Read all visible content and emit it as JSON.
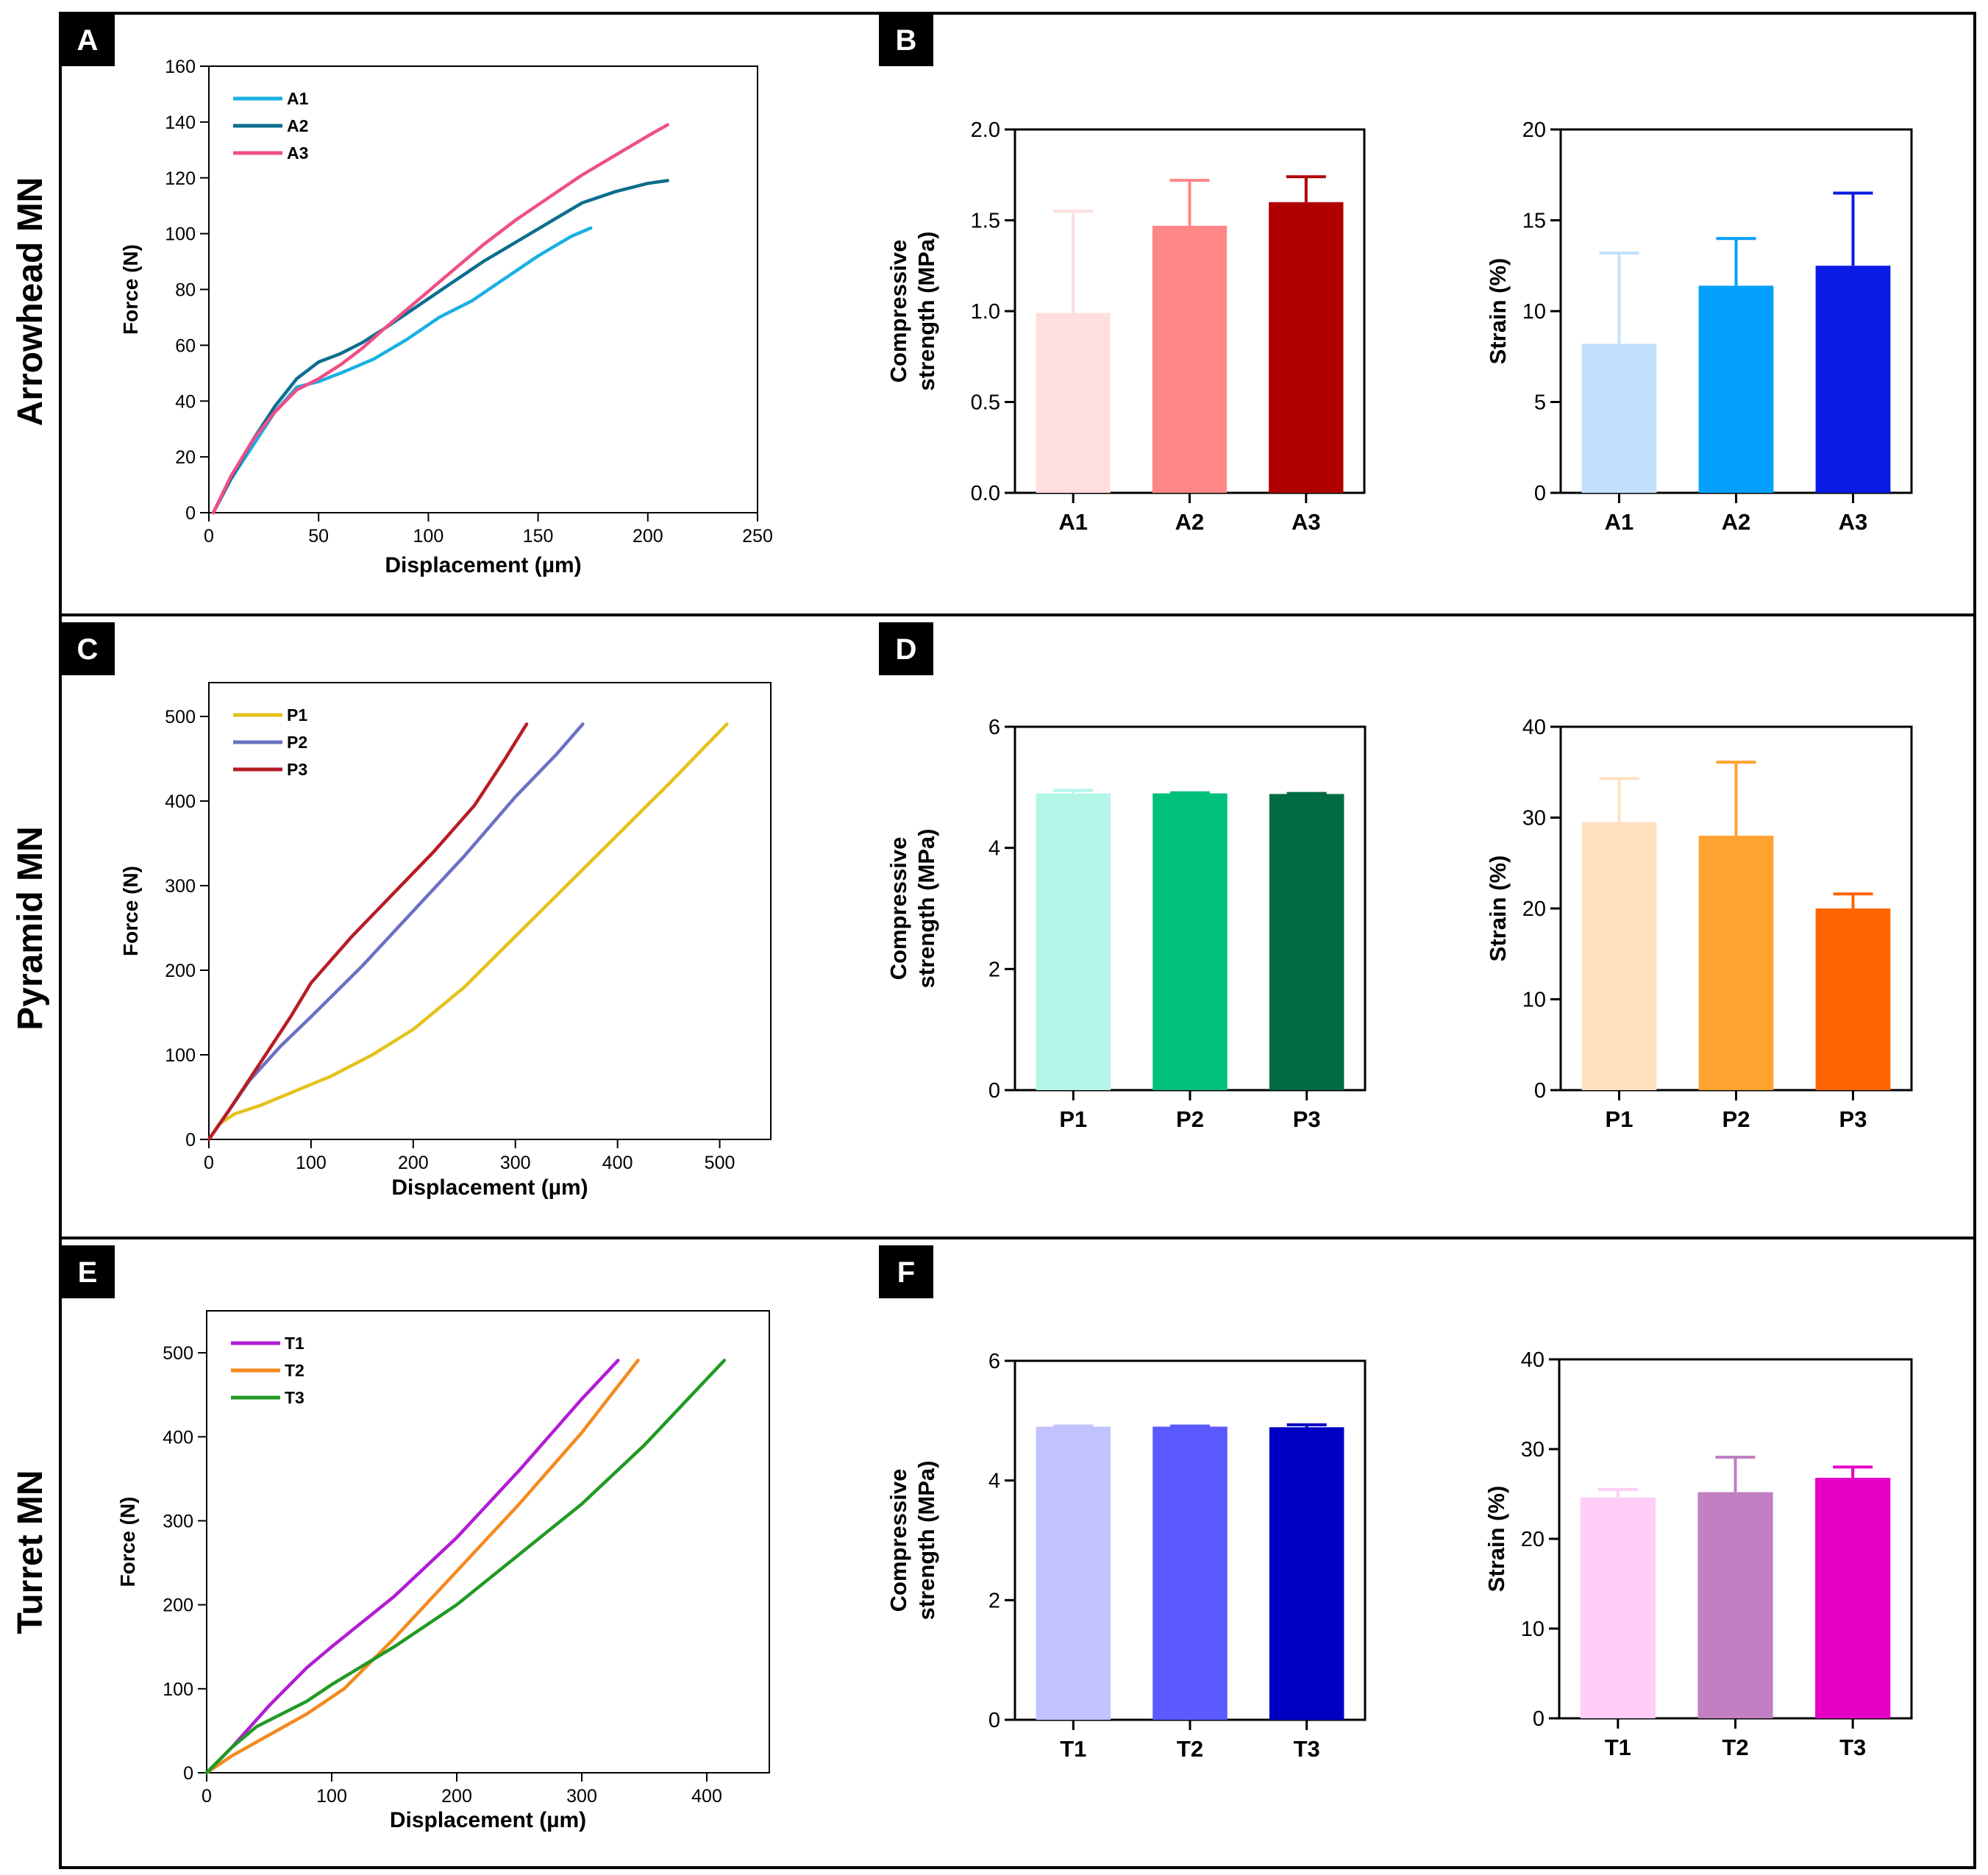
{
  "rows": [
    {
      "title": "Arrowhead MN"
    },
    {
      "title": "Pyramid MN"
    },
    {
      "title": "Turret MN"
    }
  ],
  "panel_letters": [
    "A",
    "B",
    "C",
    "D",
    "E",
    "F"
  ],
  "colors": {
    "A1": "#1ab0e3",
    "A2": "#0c6e8e",
    "A3": "#ef4f86",
    "P1": "#e3c21b",
    "P2": "#6b71c2",
    "P3": "#b71c25",
    "T1": "#b21cd3",
    "T2": "#f48a1e",
    "T3": "#219a23"
  },
  "chart_data": [
    {
      "id": "A",
      "type": "line",
      "xlabel": "Displacement (µm)",
      "ylabel": "Force (N)",
      "xlim": [
        0,
        250
      ],
      "ylim": [
        0,
        160
      ],
      "xticks": [
        0,
        50,
        100,
        150,
        200,
        250
      ],
      "yticks": [
        0,
        20,
        40,
        60,
        80,
        100,
        120,
        140,
        160
      ],
      "legend": "top-left",
      "series": [
        {
          "name": "A1",
          "color": "#1ab0e3",
          "x": [
            2,
            10,
            20,
            30,
            40,
            50,
            60,
            75,
            90,
            105,
            120,
            135,
            150,
            165,
            174
          ],
          "y": [
            0,
            12,
            24,
            36,
            45,
            47,
            50,
            55,
            62,
            70,
            76,
            84,
            92,
            99,
            102
          ]
        },
        {
          "name": "A2",
          "color": "#0c6e8e",
          "x": [
            2,
            10,
            20,
            30,
            40,
            50,
            60,
            70,
            80,
            95,
            110,
            125,
            140,
            155,
            170,
            185,
            200,
            209
          ],
          "y": [
            0,
            12,
            26,
            38,
            48,
            54,
            57,
            61,
            66,
            74,
            82,
            90,
            97,
            104,
            111,
            115,
            118,
            119
          ]
        },
        {
          "name": "A3",
          "color": "#ef4f86",
          "x": [
            2,
            10,
            20,
            30,
            40,
            50,
            60,
            70,
            80,
            95,
            110,
            125,
            140,
            155,
            170,
            185,
            200,
            209
          ],
          "y": [
            0,
            13,
            26,
            36,
            44,
            48,
            53,
            59,
            66,
            76,
            86,
            96,
            105,
            113,
            121,
            128,
            135,
            139
          ]
        }
      ]
    },
    {
      "id": "B1",
      "type": "bar",
      "categories": [
        "A1",
        "A2",
        "A3"
      ],
      "values": [
        0.99,
        1.47,
        1.6
      ],
      "errors": [
        0.56,
        0.25,
        0.14
      ],
      "colors": [
        "#ffdede",
        "#ff8686",
        "#b00000"
      ],
      "ylabel": "Compressive strength (MPa)",
      "ylabel_lines": [
        "Compressive",
        "strength (MPa)"
      ],
      "ylim": [
        0,
        2.0
      ],
      "yticks": [
        "0.0",
        "0.5",
        "1.0",
        "1.5",
        "2.0"
      ]
    },
    {
      "id": "B2",
      "type": "bar",
      "categories": [
        "A1",
        "A2",
        "A3"
      ],
      "values": [
        8.2,
        11.4,
        12.5
      ],
      "errors": [
        5.0,
        2.6,
        4.0
      ],
      "colors": [
        "#c2e0fb",
        "#02a0fc",
        "#0a1be3"
      ],
      "ylabel": "Strain (%)",
      "ylabel_lines": [
        "Strain (%)"
      ],
      "ylim": [
        0,
        20
      ],
      "yticks": [
        "0",
        "5",
        "10",
        "15",
        "20"
      ]
    },
    {
      "id": "C",
      "type": "line",
      "xlabel": "Displacement (µm)",
      "ylabel": "Force (N)",
      "xlim": [
        0,
        550
      ],
      "ylim": [
        0,
        540
      ],
      "xticks": [
        0,
        100,
        200,
        300,
        400,
        500
      ],
      "yticks": [
        0,
        100,
        200,
        300,
        400,
        500
      ],
      "legend": "top-left",
      "series": [
        {
          "name": "P1",
          "color": "#e3c21b",
          "x": [
            0,
            10,
            25,
            50,
            80,
            120,
            160,
            200,
            250,
            300,
            350,
            400,
            450,
            507
          ],
          "y": [
            0,
            18,
            30,
            40,
            55,
            75,
            100,
            130,
            180,
            240,
            300,
            360,
            420,
            491
          ]
        },
        {
          "name": "P2",
          "color": "#6b71c2",
          "x": [
            0,
            20,
            40,
            70,
            100,
            150,
            200,
            250,
            300,
            340,
            366
          ],
          "y": [
            0,
            35,
            70,
            110,
            145,
            205,
            270,
            335,
            405,
            455,
            491
          ]
        },
        {
          "name": "P3",
          "color": "#b71c25",
          "x": [
            0,
            20,
            50,
            80,
            100,
            140,
            180,
            220,
            260,
            290,
            311
          ],
          "y": [
            0,
            35,
            90,
            145,
            185,
            240,
            290,
            340,
            395,
            450,
            491
          ]
        }
      ]
    },
    {
      "id": "D1",
      "type": "bar",
      "categories": [
        "P1",
        "P2",
        "P3"
      ],
      "values": [
        4.9,
        4.9,
        4.89
      ],
      "errors": [
        0.05,
        0.01,
        0.01
      ],
      "colors": [
        "#b3f5e6",
        "#01c07c",
        "#016b42"
      ],
      "ylabel": "Compressive strength (MPa)",
      "ylabel_lines": [
        "Compressive",
        "strength (MPa)"
      ],
      "ylim": [
        0,
        6
      ],
      "yticks": [
        "0",
        "2",
        "4",
        "6"
      ]
    },
    {
      "id": "D2",
      "type": "bar",
      "categories": [
        "P1",
        "P2",
        "P3"
      ],
      "values": [
        29.5,
        28.0,
        20.0
      ],
      "errors": [
        4.8,
        8.1,
        1.6
      ],
      "colors": [
        "#ffe0bf",
        "#ffa330",
        "#ff6400"
      ],
      "ylabel": "Strain (%)",
      "ylabel_lines": [
        "Strain (%)"
      ],
      "ylim": [
        0,
        40
      ],
      "yticks": [
        "0",
        "10",
        "20",
        "30",
        "40"
      ]
    },
    {
      "id": "E",
      "type": "line",
      "xlabel": "Displacement (µm)",
      "ylabel": "Force (N)",
      "xlim": [
        0,
        450
      ],
      "ylim": [
        0,
        550
      ],
      "xticks": [
        0,
        100,
        200,
        300,
        400
      ],
      "yticks": [
        0,
        100,
        200,
        300,
        400,
        500
      ],
      "legend": "top-left",
      "series": [
        {
          "name": "T1",
          "color": "#b21cd3",
          "x": [
            0,
            20,
            50,
            80,
            100,
            150,
            200,
            250,
            300,
            329
          ],
          "y": [
            0,
            30,
            80,
            125,
            150,
            210,
            280,
            360,
            445,
            491
          ]
        },
        {
          "name": "T2",
          "color": "#f48a1e",
          "x": [
            0,
            20,
            50,
            80,
            110,
            150,
            200,
            250,
            300,
            345
          ],
          "y": [
            0,
            20,
            45,
            70,
            100,
            160,
            240,
            320,
            405,
            491
          ]
        },
        {
          "name": "T3",
          "color": "#219a23",
          "x": [
            0,
            20,
            40,
            60,
            80,
            100,
            150,
            200,
            250,
            300,
            350,
            414
          ],
          "y": [
            0,
            30,
            55,
            70,
            85,
            105,
            150,
            200,
            260,
            320,
            390,
            491
          ]
        }
      ]
    },
    {
      "id": "F1",
      "type": "bar",
      "categories": [
        "T1",
        "T2",
        "T3"
      ],
      "values": [
        4.9,
        4.9,
        4.89
      ],
      "errors": [
        0.01,
        0.01,
        0.04
      ],
      "colors": [
        "#c2c2ff",
        "#5a5aff",
        "#0000c4"
      ],
      "ylabel": "Compressive strength (MPa)",
      "ylabel_lines": [
        "Compressive",
        "strength (MPa)"
      ],
      "ylim": [
        0,
        6
      ],
      "yticks": [
        "0",
        "2",
        "4",
        "6"
      ]
    },
    {
      "id": "F2",
      "type": "bar",
      "categories": [
        "T1",
        "T2",
        "T3"
      ],
      "values": [
        24.6,
        25.2,
        26.8
      ],
      "errors": [
        0.9,
        3.9,
        1.2
      ],
      "colors": [
        "#ffcdf5",
        "#c17fc4",
        "#e600c5"
      ],
      "ylabel": "Strain (%)",
      "ylabel_lines": [
        "Strain (%)"
      ],
      "ylim": [
        0,
        40
      ],
      "yticks": [
        "0",
        "10",
        "20",
        "30",
        "40"
      ]
    }
  ]
}
